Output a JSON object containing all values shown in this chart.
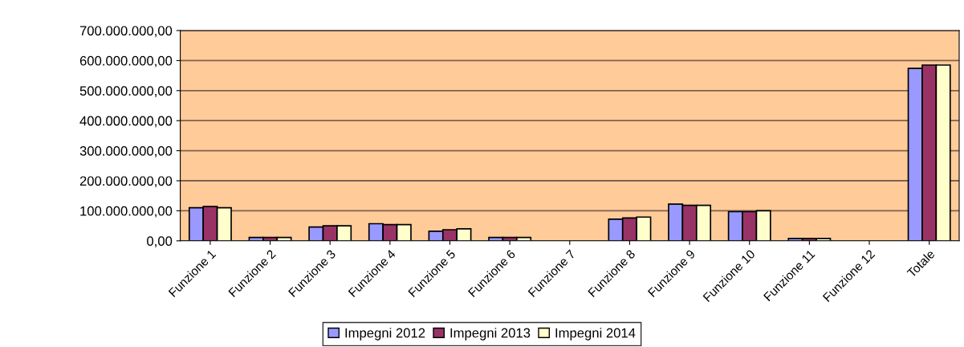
{
  "chart_data": {
    "type": "bar",
    "categories": [
      "Funzione 1",
      "Funzione 2",
      "Funzione 3",
      "Funzione 4",
      "Funzione 5",
      "Funzione 6",
      "Funzione 7",
      "Funzione 8",
      "Funzione 9",
      "Funzione 10",
      "Funzione 11",
      "Funzione 12",
      "Totale"
    ],
    "series": [
      {
        "name": "Impegni 2012",
        "color": "#9999ff",
        "values": [
          110000000,
          11000000,
          46000000,
          57000000,
          32000000,
          11000000,
          null,
          72000000,
          122000000,
          97000000,
          8000000,
          null,
          574000000
        ]
      },
      {
        "name": "Impegni 2013",
        "color": "#993366",
        "values": [
          114000000,
          11000000,
          50000000,
          54000000,
          37000000,
          11000000,
          null,
          76000000,
          118000000,
          97000000,
          8000000,
          null,
          585000000
        ]
      },
      {
        "name": "Impegni 2014",
        "color": "#ffffcc",
        "values": [
          110000000,
          11000000,
          50000000,
          54000000,
          40000000,
          11000000,
          null,
          79000000,
          118000000,
          100000000,
          8000000,
          null,
          585000000
        ]
      }
    ],
    "ylim": [
      0,
      700000000
    ],
    "yticks": [
      {
        "value": 0,
        "label": "0,00"
      },
      {
        "value": 100000000,
        "label": "100.000.000,00"
      },
      {
        "value": 200000000,
        "label": "200.000.000,00"
      },
      {
        "value": 300000000,
        "label": "300.000.000,00"
      },
      {
        "value": 400000000,
        "label": "400.000.000,00"
      },
      {
        "value": 500000000,
        "label": "500.000.000,00"
      },
      {
        "value": 600000000,
        "label": "600.000.000,00"
      },
      {
        "value": 700000000,
        "label": "700.000.000,00"
      }
    ],
    "grid": "y",
    "legend": "bottom"
  }
}
